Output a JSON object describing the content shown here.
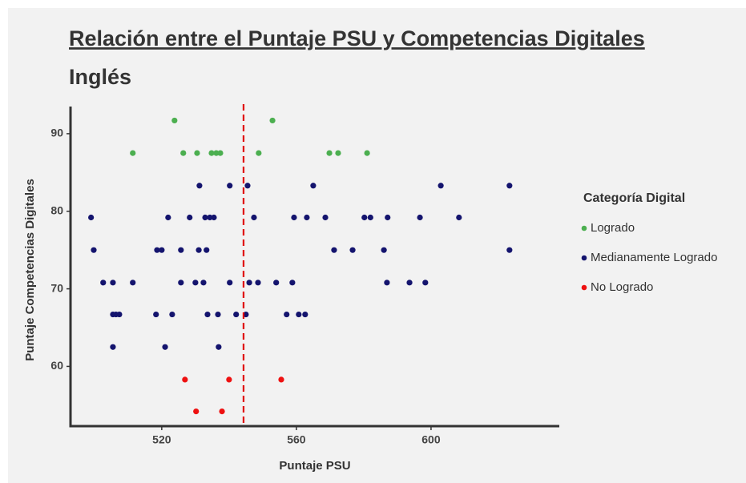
{
  "chart_data": {
    "type": "scatter",
    "title": "Relación entre el Puntaje PSU y Competencias Digitales",
    "subtitle": "Inglés",
    "x_label": "Puntaje PSU",
    "y_label": "Puntaje Competencias Digitales",
    "legend_title": "Categoría Digital",
    "legend_position": "right",
    "xlim": [
      492.9,
      638.1
    ],
    "ylim": [
      52.3,
      93.5
    ],
    "xticks": [
      520,
      560,
      600
    ],
    "yticks": [
      60,
      70,
      80,
      90
    ],
    "vline": 544.3,
    "vline_color": "#e00000",
    "series": [
      {
        "name": "Logrado",
        "color": "#4caf50",
        "x": [
          523.8,
          552.9,
          511.4,
          526.4,
          530.5,
          534.8,
          536.2,
          537.4,
          548.8,
          569.8,
          572.4,
          581.0
        ],
        "y": [
          91.7,
          91.7,
          87.5,
          87.5,
          87.5,
          87.5,
          87.5,
          87.5,
          87.5,
          87.5,
          87.5,
          87.5
        ]
      },
      {
        "name": "Medianamente Logrado",
        "color": "#14146e",
        "x": [
          531.2,
          540.2,
          545.5,
          565.0,
          602.9,
          623.3,
          499.0,
          521.9,
          528.3,
          532.9,
          534.3,
          535.5,
          547.4,
          559.3,
          563.1,
          568.6,
          580.2,
          582.0,
          587.1,
          596.7,
          608.3,
          499.8,
          518.6,
          520.0,
          525.7,
          531.0,
          533.3,
          571.2,
          576.7,
          586.0,
          623.3,
          502.6,
          505.5,
          511.4,
          525.7,
          530.0,
          532.4,
          540.2,
          546.0,
          548.6,
          554.0,
          558.8,
          586.9,
          593.6,
          598.3,
          505.5,
          506.4,
          507.4,
          518.3,
          523.1,
          533.6,
          536.7,
          542.1,
          545.0,
          557.1,
          560.7,
          562.6,
          505.5,
          521.0,
          536.9
        ],
        "y": [
          83.3,
          83.3,
          83.3,
          83.3,
          83.3,
          83.3,
          79.2,
          79.2,
          79.2,
          79.2,
          79.2,
          79.2,
          79.2,
          79.2,
          79.2,
          79.2,
          79.2,
          79.2,
          79.2,
          79.2,
          79.2,
          75,
          75,
          75,
          75,
          75,
          75,
          75,
          75,
          75,
          75,
          70.8,
          70.8,
          70.8,
          70.8,
          70.8,
          70.8,
          70.8,
          70.8,
          70.8,
          70.8,
          70.8,
          70.8,
          70.8,
          70.8,
          66.7,
          66.7,
          66.7,
          66.7,
          66.7,
          66.7,
          66.7,
          66.7,
          66.7,
          66.7,
          66.7,
          66.7,
          62.5,
          62.5,
          62.5
        ]
      },
      {
        "name": "No Logrado",
        "color": "#ee1111",
        "x": [
          526.9,
          540.0,
          555.5,
          530.2,
          537.9
        ],
        "y": [
          58.3,
          58.3,
          58.3,
          54.2,
          54.2
        ]
      }
    ]
  }
}
